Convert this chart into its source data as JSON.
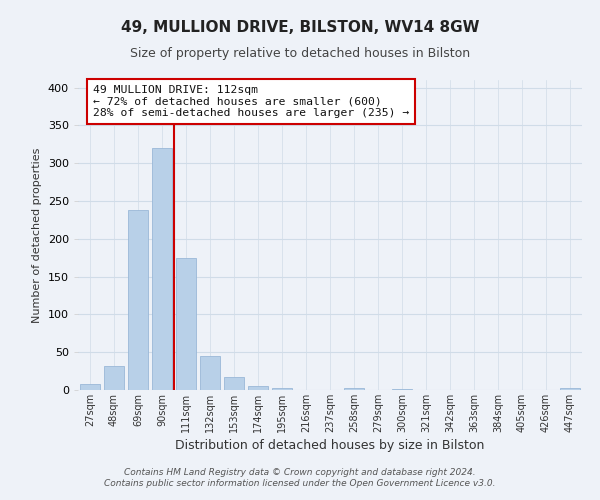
{
  "title": "49, MULLION DRIVE, BILSTON, WV14 8GW",
  "subtitle": "Size of property relative to detached houses in Bilston",
  "xlabel": "Distribution of detached houses by size in Bilston",
  "ylabel": "Number of detached properties",
  "bar_labels": [
    "27sqm",
    "48sqm",
    "69sqm",
    "90sqm",
    "111sqm",
    "132sqm",
    "153sqm",
    "174sqm",
    "195sqm",
    "216sqm",
    "237sqm",
    "258sqm",
    "279sqm",
    "300sqm",
    "321sqm",
    "342sqm",
    "363sqm",
    "384sqm",
    "405sqm",
    "426sqm",
    "447sqm"
  ],
  "bar_values": [
    8,
    32,
    238,
    320,
    175,
    45,
    17,
    5,
    2,
    0,
    0,
    3,
    0,
    1,
    0,
    0,
    0,
    0,
    0,
    0,
    2
  ],
  "bar_color": "#b8d0e8",
  "bar_edge_color": "#9ab8d8",
  "grid_color": "#d0dce8",
  "background_color": "#eef2f8",
  "ylim": [
    0,
    410
  ],
  "yticks": [
    0,
    50,
    100,
    150,
    200,
    250,
    300,
    350,
    400
  ],
  "property_line_color": "#cc0000",
  "annotation_line1": "49 MULLION DRIVE: 112sqm",
  "annotation_line2": "← 72% of detached houses are smaller (600)",
  "annotation_line3": "28% of semi-detached houses are larger (235) →",
  "annotation_box_color": "#ffffff",
  "annotation_box_edge": "#cc0000",
  "footer_line1": "Contains HM Land Registry data © Crown copyright and database right 2024.",
  "footer_line2": "Contains public sector information licensed under the Open Government Licence v3.0.",
  "title_fontsize": 11,
  "subtitle_fontsize": 9,
  "ylabel_fontsize": 8,
  "xlabel_fontsize": 9
}
